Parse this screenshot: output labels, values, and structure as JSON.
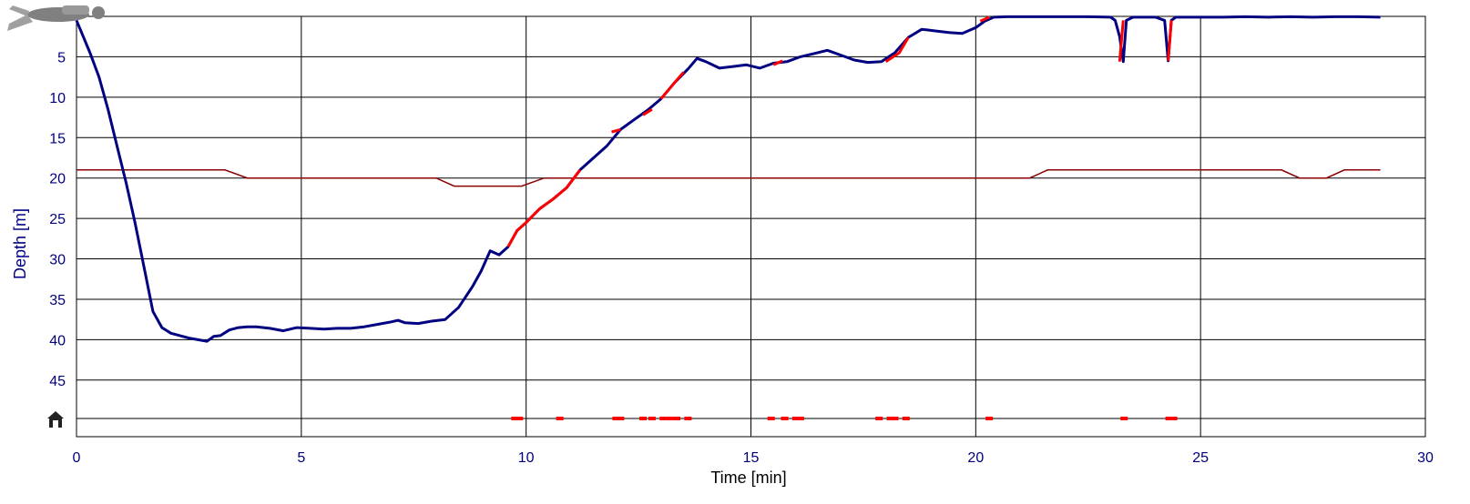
{
  "chart_data": {
    "type": "line",
    "xlabel": "Time [min]",
    "ylabel": "Depth [m]",
    "xlim": [
      0,
      30
    ],
    "ylim": [
      0,
      52
    ],
    "y_inverted": true,
    "x_ticks": [
      "0",
      "5",
      "10",
      "15",
      "20",
      "25",
      "30"
    ],
    "y_ticks": [
      "0",
      "5",
      "10",
      "15",
      "20",
      "25",
      "30",
      "35",
      "40",
      "45"
    ],
    "grid": true,
    "colors": {
      "depth_line": "#000080",
      "fast_ascent": "#ff0000",
      "temperature_line": "#8b0000",
      "grid": "#000000",
      "axis_text": "#000080"
    },
    "series": [
      {
        "key": "depth",
        "x": [
          0,
          0.15,
          0.3,
          0.5,
          0.7,
          0.9,
          1.1,
          1.3,
          1.5,
          1.7,
          1.9,
          2.1,
          2.3,
          2.5,
          2.7,
          2.9,
          3.05,
          3.2,
          3.4,
          3.6,
          3.8,
          4.0,
          4.3,
          4.6,
          4.9,
          5.2,
          5.5,
          5.8,
          6.1,
          6.4,
          6.7,
          7.0,
          7.15,
          7.3,
          7.6,
          7.9,
          8.2,
          8.5,
          8.8,
          9.0,
          9.2,
          9.4,
          9.6,
          9.8,
          10.0,
          10.3,
          10.6,
          10.9,
          11.2,
          11.5,
          11.8,
          12.1,
          12.4,
          12.7,
          13.0,
          13.3,
          13.6,
          13.8,
          14.0,
          14.3,
          14.6,
          14.9,
          15.2,
          15.5,
          15.8,
          16.1,
          16.4,
          16.7,
          17.0,
          17.3,
          17.6,
          17.9,
          18.2,
          18.5,
          18.8,
          19.1,
          19.4,
          19.7,
          20.0,
          20.2,
          20.4,
          20.7,
          21.0,
          21.5,
          22.0,
          22.5,
          23.0,
          23.1,
          23.2,
          23.28,
          23.35,
          23.5,
          24.0,
          24.2,
          24.28,
          24.35,
          24.45,
          25.0,
          25.5,
          26.0,
          26.5,
          27.0,
          27.5,
          28.0,
          28.5,
          29.0
        ],
        "y": [
          0.5,
          2.5,
          4.5,
          7.5,
          11.5,
          16,
          20.5,
          25.5,
          31,
          36.5,
          38.5,
          39.2,
          39.5,
          39.8,
          40.0,
          40.2,
          39.6,
          39.5,
          38.8,
          38.5,
          38.4,
          38.4,
          38.6,
          38.9,
          38.5,
          38.6,
          38.7,
          38.6,
          38.6,
          38.4,
          38.1,
          37.8,
          37.6,
          37.9,
          38.0,
          37.7,
          37.5,
          36.0,
          33.5,
          31.5,
          29.0,
          29.5,
          28.5,
          26.5,
          25.5,
          23.8,
          22.6,
          21.2,
          19.0,
          17.5,
          16.0,
          14.0,
          12.8,
          11.6,
          10.2,
          8.2,
          6.5,
          5.2,
          5.6,
          6.4,
          6.2,
          6.0,
          6.4,
          5.8,
          5.6,
          5.0,
          4.6,
          4.2,
          4.8,
          5.4,
          5.7,
          5.6,
          4.5,
          2.6,
          1.6,
          1.8,
          2.0,
          2.1,
          1.4,
          0.6,
          0.1,
          0.05,
          0.05,
          0.05,
          0.05,
          0.05,
          0.1,
          0.5,
          2.5,
          5.6,
          0.5,
          0.1,
          0.1,
          0.5,
          5.5,
          0.5,
          0.1,
          0.1,
          0.1,
          0.05,
          0.1,
          0.05,
          0.1,
          0.05,
          0.05,
          0.1
        ]
      },
      {
        "key": "fast-ascent",
        "segments": [
          {
            "x": [
              9.6,
              9.8,
              10.0,
              10.3,
              10.6,
              10.9,
              11.2
            ],
            "y": [
              28.5,
              26.5,
              25.5,
              23.8,
              22.6,
              21.2,
              19.0
            ]
          },
          {
            "x": [
              11.9,
              12.1
            ],
            "y": [
              14.3,
              14.0
            ]
          },
          {
            "x": [
              12.6,
              12.8
            ],
            "y": [
              12.2,
              11.5
            ]
          },
          {
            "x": [
              13.0,
              13.3,
              13.5
            ],
            "y": [
              10.2,
              8.2,
              6.9
            ]
          },
          {
            "x": [
              15.5,
              15.7
            ],
            "y": [
              6.0,
              5.5
            ]
          },
          {
            "x": [
              18.0,
              18.3,
              18.5
            ],
            "y": [
              5.6,
              4.5,
              2.6
            ]
          },
          {
            "x": [
              20.1,
              20.3
            ],
            "y": [
              0.6,
              0.1
            ]
          },
          {
            "x": [
              23.2,
              23.28
            ],
            "y": [
              5.6,
              0.5
            ]
          },
          {
            "x": [
              24.28,
              24.35
            ],
            "y": [
              5.5,
              0.5
            ]
          }
        ]
      },
      {
        "key": "temperature",
        "x": [
          0,
          3.3,
          3.8,
          8.0,
          8.4,
          9.9,
          10.4,
          21.2,
          21.6,
          26.8,
          27.2,
          27.8,
          28.2,
          29.0
        ],
        "y": [
          19.0,
          19.0,
          20.0,
          20.0,
          21.0,
          21.0,
          20.0,
          20.0,
          19.0,
          19.0,
          20.0,
          20.0,
          19.0,
          19.0
        ]
      }
    ],
    "ascent_warnings": {
      "x": [
        9.75,
        9.85,
        10.75,
        12.0,
        12.1,
        12.6,
        12.8,
        13.05,
        13.2,
        13.35,
        13.6,
        15.45,
        15.75,
        16.0,
        16.1,
        17.85,
        18.1,
        18.2,
        18.45,
        20.3,
        23.3,
        24.3,
        24.4
      ]
    }
  }
}
